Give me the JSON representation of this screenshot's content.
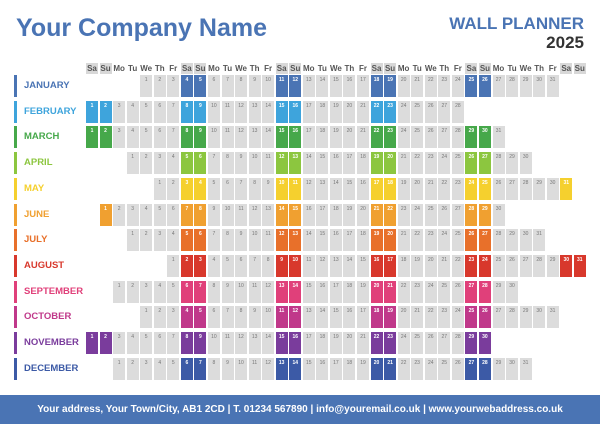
{
  "header": {
    "company_name": "Your Company Name",
    "title": "WALL PLANNER",
    "year": "2025"
  },
  "weekday_headers": [
    "Sa",
    "Su",
    "Mo",
    "Tu",
    "We",
    "Th",
    "Fr",
    "Sa",
    "Su",
    "Mo",
    "Tu",
    "We",
    "Th",
    "Fr",
    "Sa",
    "Su",
    "Mo",
    "Tu",
    "We",
    "Th",
    "Fr",
    "Sa",
    "Su",
    "Mo",
    "Tu",
    "We",
    "Th",
    "Fr",
    "Sa",
    "Su",
    "Mo",
    "Tu",
    "We",
    "Th",
    "Fr",
    "Sa",
    "Su"
  ],
  "months": [
    {
      "name": "JANUARY",
      "color": "#4a74b4",
      "start_col": 4,
      "days": 31
    },
    {
      "name": "FEBRUARY",
      "color": "#3ea4dc",
      "start_col": 0,
      "days": 28
    },
    {
      "name": "MARCH",
      "color": "#46a84a",
      "start_col": 0,
      "days": 31
    },
    {
      "name": "APRIL",
      "color": "#8cc63f",
      "start_col": 3,
      "days": 30
    },
    {
      "name": "MAY",
      "color": "#f5d02e",
      "start_col": 5,
      "days": 31
    },
    {
      "name": "JUNE",
      "color": "#f0a030",
      "start_col": 1,
      "days": 30
    },
    {
      "name": "JULY",
      "color": "#e8702a",
      "start_col": 3,
      "days": 31
    },
    {
      "name": "AUGUST",
      "color": "#d8382c",
      "start_col": 6,
      "days": 31
    },
    {
      "name": "SEPTEMBER",
      "color": "#e0407a",
      "start_col": 2,
      "days": 30
    },
    {
      "name": "OCTOBER",
      "color": "#c0388a",
      "start_col": 4,
      "days": 31
    },
    {
      "name": "NOVEMBER",
      "color": "#7a3c9c",
      "start_col": 0,
      "days": 30
    },
    {
      "name": "DECEMBER",
      "color": "#3c5aa6",
      "start_col": 2,
      "days": 31
    }
  ],
  "footer": {
    "text": "Your address, Your Town/City, AB1 2CD | T. 01234 567890 | info@youremail.co.uk | www.yourwebaddress.co.uk"
  }
}
